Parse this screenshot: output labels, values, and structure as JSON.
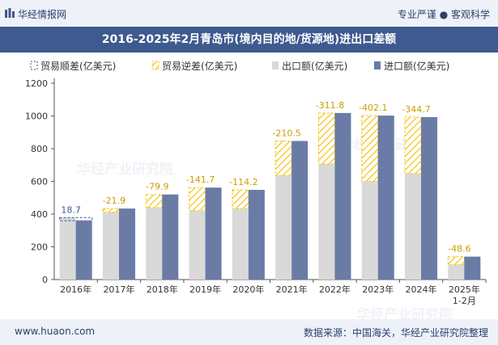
{
  "header": {
    "brand": "华经情报网",
    "slogan_left": "专业严谨",
    "slogan_right": "客观科学"
  },
  "footer": {
    "site": "www.huaon.com",
    "source": "数据来源：中国海关，华经产业研究院整理"
  },
  "watermark": "华经产业研究院",
  "colors": {
    "surplus": "#3e5a8e",
    "deficit": "#f5c518",
    "export": "#d9d9d9",
    "import": "#6a7ba6",
    "title_bar": "#3e5a8e"
  },
  "chart_data": {
    "type": "bar",
    "title": "2016-2025年2月青岛市(境内目的地/货源地)进出口差额",
    "categories": [
      "2016年",
      "2017年",
      "2018年",
      "2019年",
      "2020年",
      "2021年",
      "2022年",
      "2023年",
      "2024年",
      "2025年\n1-2月"
    ],
    "series": [
      {
        "name": "出口额(亿美元)",
        "values": [
          379,
          412,
          440,
          421,
          434,
          636,
          706,
          600,
          648,
          91
        ]
      },
      {
        "name": "进口额(亿美元)",
        "values": [
          360,
          434,
          520,
          562,
          548,
          847,
          1018,
          1002,
          993,
          140
        ]
      }
    ],
    "balance": [
      18.7,
      -21.9,
      -79.9,
      -141.7,
      -114.2,
      -210.5,
      -311.8,
      -402.1,
      -344.7,
      -48.6
    ],
    "legend": [
      "贸易顺差(亿美元)",
      "贸易逆差(亿美元)",
      "出口额(亿美元)",
      "进口额(亿美元)"
    ],
    "legend_position": "top-left",
    "ylim": [
      0,
      1200
    ],
    "yticks": [
      "0",
      "200",
      "400",
      "600",
      "800",
      "1000",
      "1200"
    ],
    "grid": false
  }
}
